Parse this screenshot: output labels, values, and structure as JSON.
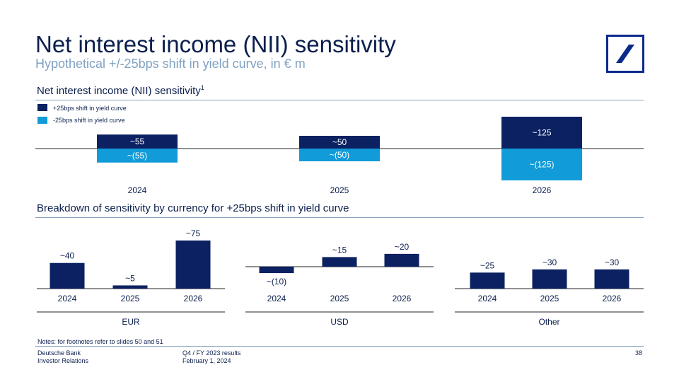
{
  "header": {
    "title": "Net interest income (NII) sensitivity",
    "subtitle": "Hypothetical +/-25bps shift in yield curve, in € m"
  },
  "section1": {
    "title": "Net interest income (NII) sensitivity",
    "footnote_mark": "1"
  },
  "section2": {
    "title": "Breakdown of sensitivity by currency for +25bps shift in yield curve"
  },
  "colors": {
    "dark": "#0b2162",
    "light": "#119bd8",
    "rule": "#8aa4bf",
    "brand": "#0b2a8c"
  },
  "chart_data": [
    {
      "type": "bar",
      "title": "Net interest income (NII) sensitivity",
      "categories": [
        "2024",
        "2025",
        "2026"
      ],
      "series": [
        {
          "name": "+25bps shift in yield curve",
          "values": [
            55,
            50,
            125
          ],
          "labels": [
            "~55",
            "~50",
            "~125"
          ]
        },
        {
          "name": "-25bps shift in yield curve",
          "values": [
            -55,
            -50,
            -125
          ],
          "labels": [
            "~(55)",
            "~(50)",
            "~(125)"
          ]
        }
      ]
    },
    {
      "type": "bar",
      "title": "EUR",
      "categories": [
        "2024",
        "2025",
        "2026"
      ],
      "values": [
        40,
        5,
        75
      ],
      "labels": [
        "~40",
        "~5",
        "~75"
      ]
    },
    {
      "type": "bar",
      "title": "USD",
      "categories": [
        "2024",
        "2025",
        "2026"
      ],
      "values": [
        -10,
        15,
        20
      ],
      "labels": [
        "~(10)",
        "~15",
        "~20"
      ]
    },
    {
      "type": "bar",
      "title": "Other",
      "categories": [
        "2024",
        "2025",
        "2026"
      ],
      "values": [
        25,
        30,
        30
      ],
      "labels": [
        "~25",
        "~30",
        "~30"
      ]
    }
  ],
  "notes": "Notes: for footnotes refer to slides 50 and 51",
  "footer": {
    "company": "Deutsche Bank",
    "department": "Investor Relations",
    "report": "Q4 / FY 2023 results",
    "date": "February  1, 2024",
    "page": "38"
  }
}
